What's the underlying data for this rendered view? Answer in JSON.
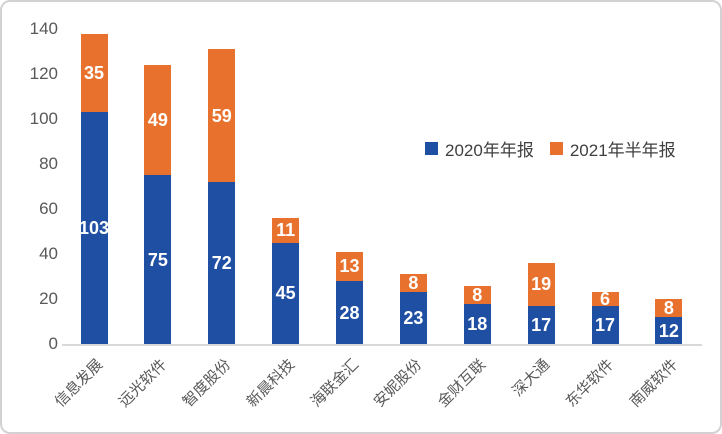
{
  "chart_data": {
    "type": "bar",
    "stacked": true,
    "title": "",
    "xlabel": "",
    "ylabel": "",
    "categories": [
      "信息发展",
      "远光软件",
      "智度股份",
      "新晨科技",
      "海联金汇",
      "安妮股份",
      "金财互联",
      "深大通",
      "东华软件",
      "南威软件"
    ],
    "series": [
      {
        "name": "2020年年报",
        "color": "#1E4FA3",
        "values": [
          103,
          75,
          72,
          45,
          28,
          23,
          18,
          17,
          17,
          12
        ]
      },
      {
        "name": "2021年半年报",
        "color": "#E8722D",
        "values": [
          35,
          49,
          59,
          11,
          13,
          8,
          8,
          19,
          6,
          8
        ]
      }
    ],
    "totals": [
      138,
      124,
      131,
      56,
      41,
      31,
      26,
      36,
      23,
      20
    ],
    "ylim": [
      0,
      140
    ],
    "yticks": [
      0,
      20,
      40,
      60,
      80,
      100,
      120,
      140
    ],
    "grid": false,
    "legend_position": "center-right",
    "data_labels": {
      "show": true,
      "color": "#FFFFFF"
    },
    "axis": {
      "line_color": "#D9D9D9",
      "tick_label_color": "#595959",
      "category_label_color": "#595959",
      "category_rotation_deg": -45
    }
  }
}
